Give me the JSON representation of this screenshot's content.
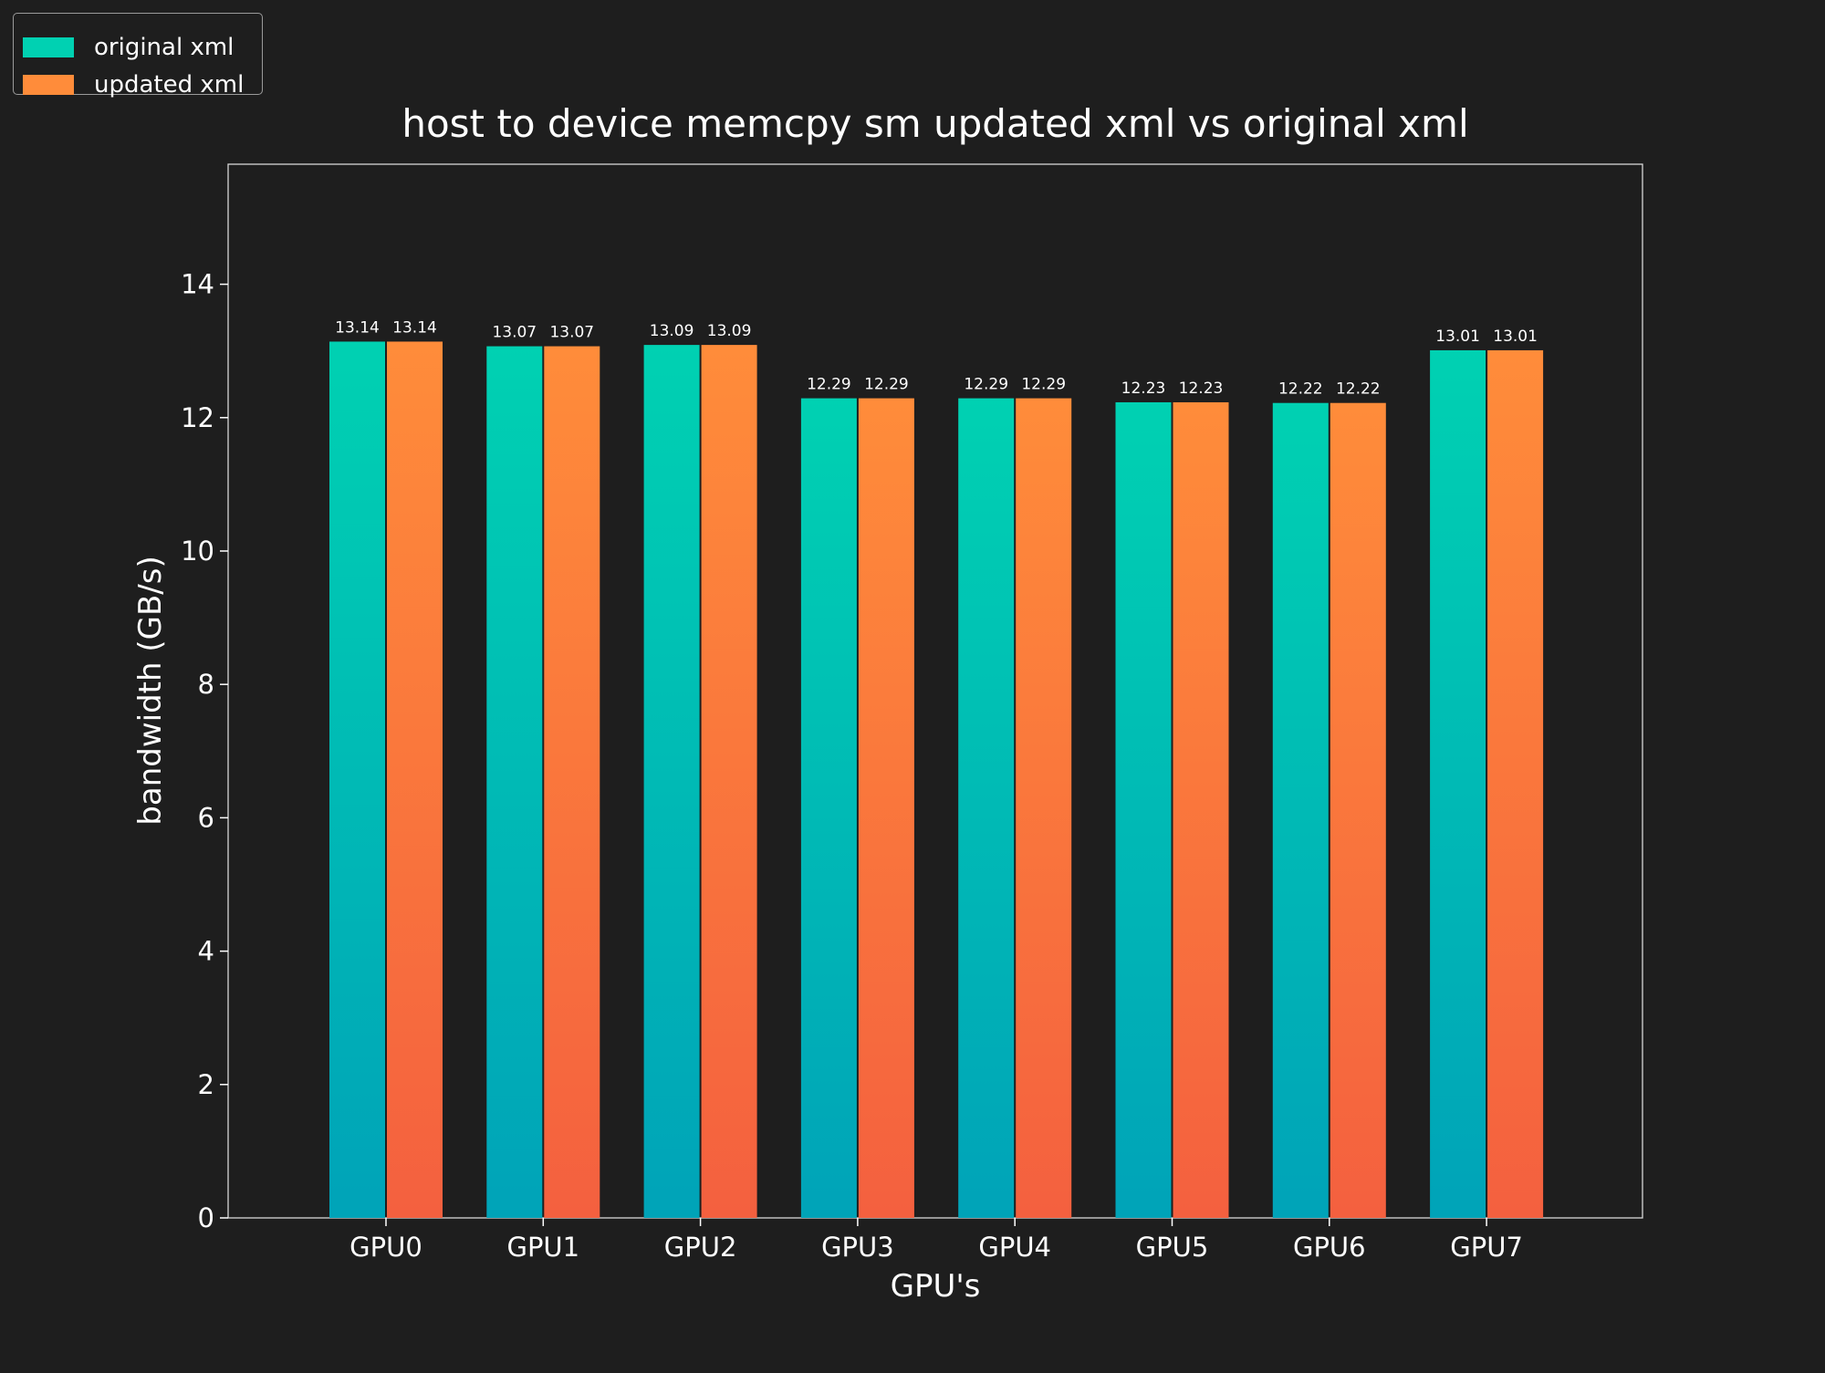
{
  "chart_data": {
    "type": "bar",
    "title": "host to device memcpy sm updated xml vs original xml",
    "xlabel": "GPU's",
    "ylabel": "bandwidth (GB/s)",
    "categories": [
      "GPU0",
      "GPU1",
      "GPU2",
      "GPU3",
      "GPU4",
      "GPU5",
      "GPU6",
      "GPU7"
    ],
    "series": [
      {
        "name": "original xml",
        "values": [
          13.14,
          13.07,
          13.09,
          12.29,
          12.29,
          12.23,
          12.22,
          13.01
        ],
        "labels": [
          "13.14",
          "13.07",
          "13.09",
          "12.29",
          "12.29",
          "12.23",
          "12.22",
          "13.01"
        ],
        "color_top": "#00d1b2",
        "color_bottom": "#00a3b8"
      },
      {
        "name": "updated xml",
        "values": [
          13.14,
          13.07,
          13.09,
          12.29,
          12.29,
          12.23,
          12.22,
          13.01
        ],
        "labels": [
          "13.14",
          "13.07",
          "13.09",
          "12.29",
          "12.29",
          "12.23",
          "12.22",
          "13.01"
        ],
        "color_top": "#ff8c3a",
        "color_bottom": "#f4603f"
      }
    ],
    "ylim": [
      0,
      15.8
    ],
    "yticks": [
      0,
      2,
      4,
      6,
      8,
      10,
      12,
      14
    ],
    "ytick_labels": [
      "0",
      "2",
      "4",
      "6",
      "8",
      "10",
      "12",
      "14"
    ],
    "grid": false,
    "legend_position": "top-left",
    "background_color": "#1e1e1e",
    "text_color": "#ffffff"
  }
}
